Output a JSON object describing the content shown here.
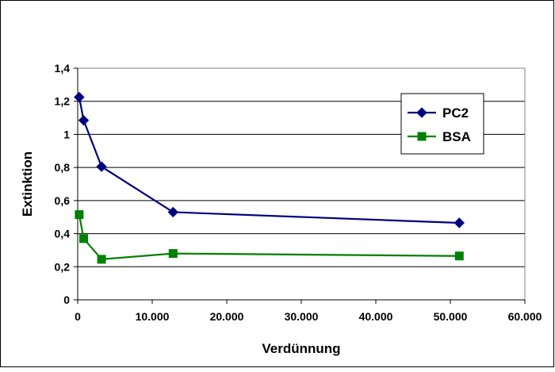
{
  "chart_data": {
    "type": "line",
    "title": "",
    "xlabel": "Verdünnung",
    "ylabel": "Extinktion",
    "xlim": [
      0,
      60000
    ],
    "ylim": [
      0,
      1.4
    ],
    "x_ticks": [
      0,
      10000,
      20000,
      30000,
      40000,
      50000,
      60000
    ],
    "x_tick_labels": [
      "0",
      "10.000",
      "20.000",
      "30.000",
      "40.000",
      "50.000",
      "60.000"
    ],
    "y_ticks": [
      0,
      0.2,
      0.4,
      0.6,
      0.8,
      1.0,
      1.2,
      1.4
    ],
    "y_tick_labels": [
      "0",
      "0,2",
      "0,4",
      "0,6",
      "0,8",
      "1",
      "1,2",
      "1,4"
    ],
    "grid": "horizontal",
    "legend_position": "top-right",
    "series": [
      {
        "name": "PC2",
        "color": "#000080",
        "marker": "diamond",
        "x": [
          200,
          800,
          3200,
          12800,
          51200
        ],
        "y": [
          1.225,
          1.085,
          0.805,
          0.53,
          0.465
        ]
      },
      {
        "name": "BSA",
        "color": "#008000",
        "marker": "square",
        "x": [
          200,
          800,
          3200,
          12800,
          51200
        ],
        "y": [
          0.515,
          0.37,
          0.245,
          0.28,
          0.265
        ]
      }
    ]
  }
}
